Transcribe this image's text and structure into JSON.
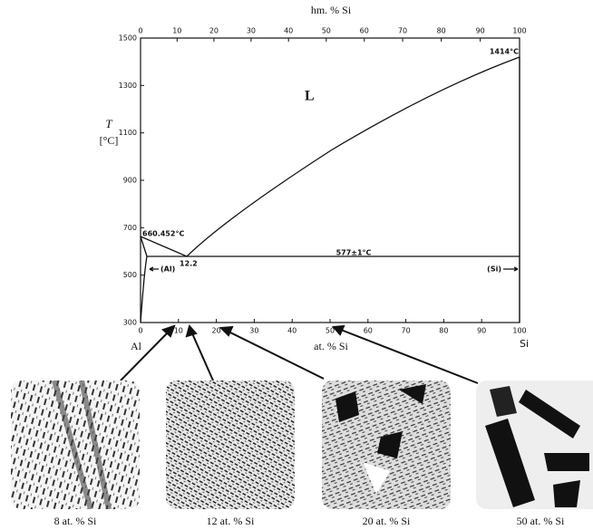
{
  "top_axis": {
    "label": "hm. % Si",
    "ticks": [
      0,
      10,
      20,
      30,
      40,
      50,
      60,
      70,
      80,
      90,
      100
    ]
  },
  "bottom_axis": {
    "label": "at. % Si",
    "ticks": [
      0,
      10,
      20,
      30,
      40,
      50,
      60,
      70,
      80,
      90,
      100
    ],
    "left_end": "Al",
    "right_end": "Si"
  },
  "y_axis": {
    "symbol": "T",
    "unit": "[°C]",
    "ticks": [
      300,
      500,
      700,
      900,
      1100,
      1300,
      1500
    ]
  },
  "annotations": {
    "liquid": "L",
    "si_melting": "1414°C",
    "al_melting": "660.452°C",
    "eutectic_composition": "12.2",
    "eutectic_temperature": "577±1°C",
    "al_phase": "(Al)",
    "si_phase": "(Si)"
  },
  "micrographs": [
    {
      "caption": "8 at. % Si"
    },
    {
      "caption": "12 at. % Si"
    },
    {
      "caption": "20 at. % Si"
    },
    {
      "caption": "50 at. % Si"
    }
  ]
}
